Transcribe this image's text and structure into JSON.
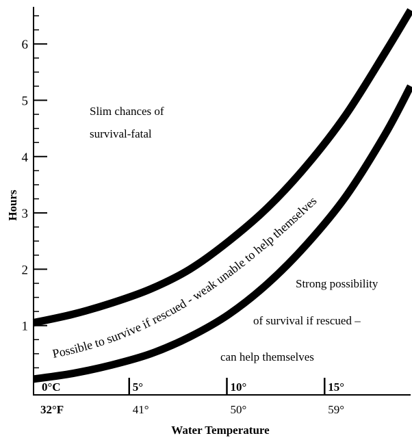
{
  "chart_data": {
    "type": "line",
    "title": "",
    "xlabel": "Water Temperature",
    "ylabel": "Hours",
    "ylim": [
      0,
      6.6
    ],
    "yticks": [
      "1",
      "2",
      "3",
      "4",
      "5",
      "6"
    ],
    "x_ticks_celsius": [
      "0°C",
      "5°",
      "10°",
      "15°"
    ],
    "x_ticks_fahrenheit": [
      "32°F",
      "41°",
      "50°",
      "59°"
    ],
    "x_celsius_range": [
      0,
      19.3
    ],
    "grid": false,
    "series": [
      {
        "x": [
          0,
          2,
          4,
          6,
          8,
          10,
          12,
          14,
          16,
          18,
          19.3
        ],
        "y": [
          1.05,
          1.2,
          1.4,
          1.65,
          2.0,
          2.5,
          3.1,
          3.85,
          4.75,
          5.85,
          6.6
        ]
      },
      {
        "x": [
          0,
          2,
          4,
          6,
          8,
          10,
          12,
          14,
          16,
          18,
          19.3
        ],
        "y": [
          0.05,
          0.15,
          0.3,
          0.5,
          0.8,
          1.2,
          1.75,
          2.45,
          3.3,
          4.4,
          5.25
        ]
      }
    ],
    "annotations": {
      "top_region": [
        "Slim chances of",
        "survival-fatal"
      ],
      "band": "Possible to survive if rescued - weak unable to help themselves",
      "bottom_region": [
        "Strong possibility",
        "of survival if rescued –",
        "can help themselves"
      ]
    }
  }
}
